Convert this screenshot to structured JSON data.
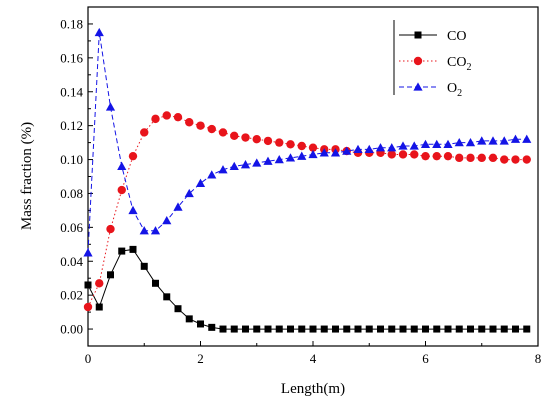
{
  "chart_data": {
    "type": "line",
    "xlabel": "Length(m)",
    "ylabel": "Mass fraction (%)",
    "xlim": [
      0,
      8
    ],
    "ylim": [
      -0.01,
      0.19
    ],
    "x_ticks": [
      "0",
      "2",
      "4",
      "6",
      "8"
    ],
    "y_ticks": [
      "0.00",
      "0.02",
      "0.04",
      "0.06",
      "0.08",
      "0.10",
      "0.12",
      "0.14",
      "0.16",
      "0.18"
    ],
    "grid": false,
    "legend_position": "top-right",
    "series": [
      {
        "name": "CO",
        "label_main": "CO",
        "label_sub": "",
        "color": "#000000",
        "marker": "square",
        "line_style": "solid",
        "x": [
          0,
          0.2,
          0.4,
          0.6,
          0.8,
          1.0,
          1.2,
          1.4,
          1.6,
          1.8,
          2.0,
          2.2,
          2.4,
          2.6,
          2.8,
          3.0,
          3.2,
          3.4,
          3.6,
          3.8,
          4.0,
          4.2,
          4.4,
          4.6,
          4.8,
          5.0,
          5.2,
          5.4,
          5.6,
          5.8,
          6.0,
          6.2,
          6.4,
          6.6,
          6.8,
          7.0,
          7.2,
          7.4,
          7.6,
          7.8
        ],
        "y": [
          0.026,
          0.013,
          0.032,
          0.046,
          0.047,
          0.037,
          0.027,
          0.019,
          0.012,
          0.006,
          0.003,
          0.001,
          0.0,
          0.0,
          0.0,
          0.0,
          0.0,
          0.0,
          0.0,
          0.0,
          0.0,
          0.0,
          0.0,
          0.0,
          0.0,
          0.0,
          0.0,
          0.0,
          0.0,
          0.0,
          0.0,
          0.0,
          0.0,
          0.0,
          0.0,
          0.0,
          0.0,
          0.0,
          0.0,
          0.0
        ]
      },
      {
        "name": "CO2",
        "label_main": "CO",
        "label_sub": "2",
        "color": "#e8141b",
        "marker": "circle",
        "line_style": "dotted",
        "x": [
          0,
          0.2,
          0.4,
          0.6,
          0.8,
          1.0,
          1.2,
          1.4,
          1.6,
          1.8,
          2.0,
          2.2,
          2.4,
          2.6,
          2.8,
          3.0,
          3.2,
          3.4,
          3.6,
          3.8,
          4.0,
          4.2,
          4.4,
          4.6,
          4.8,
          5.0,
          5.2,
          5.4,
          5.6,
          5.8,
          6.0,
          6.2,
          6.4,
          6.6,
          6.8,
          7.0,
          7.2,
          7.4,
          7.6,
          7.8
        ],
        "y": [
          0.013,
          0.027,
          0.059,
          0.082,
          0.102,
          0.116,
          0.124,
          0.126,
          0.125,
          0.122,
          0.12,
          0.118,
          0.116,
          0.114,
          0.113,
          0.112,
          0.111,
          0.11,
          0.109,
          0.108,
          0.107,
          0.106,
          0.106,
          0.105,
          0.104,
          0.104,
          0.104,
          0.103,
          0.103,
          0.103,
          0.102,
          0.102,
          0.102,
          0.101,
          0.101,
          0.101,
          0.101,
          0.1,
          0.1,
          0.1
        ]
      },
      {
        "name": "O2",
        "label_main": "O",
        "label_sub": "2",
        "color": "#1414e6",
        "marker": "triangle",
        "line_style": "dashed",
        "x": [
          0,
          0.2,
          0.4,
          0.6,
          0.8,
          1.0,
          1.2,
          1.4,
          1.6,
          1.8,
          2.0,
          2.2,
          2.4,
          2.6,
          2.8,
          3.0,
          3.2,
          3.4,
          3.6,
          3.8,
          4.0,
          4.2,
          4.4,
          4.6,
          4.8,
          5.0,
          5.2,
          5.4,
          5.6,
          5.8,
          6.0,
          6.2,
          6.4,
          6.6,
          6.8,
          7.0,
          7.2,
          7.4,
          7.6,
          7.8
        ],
        "y": [
          0.045,
          0.175,
          0.131,
          0.096,
          0.07,
          0.058,
          0.058,
          0.064,
          0.072,
          0.08,
          0.086,
          0.091,
          0.094,
          0.096,
          0.097,
          0.098,
          0.099,
          0.1,
          0.101,
          0.102,
          0.103,
          0.104,
          0.104,
          0.105,
          0.106,
          0.106,
          0.107,
          0.107,
          0.108,
          0.108,
          0.109,
          0.109,
          0.109,
          0.11,
          0.11,
          0.111,
          0.111,
          0.111,
          0.112,
          0.112
        ]
      }
    ]
  }
}
